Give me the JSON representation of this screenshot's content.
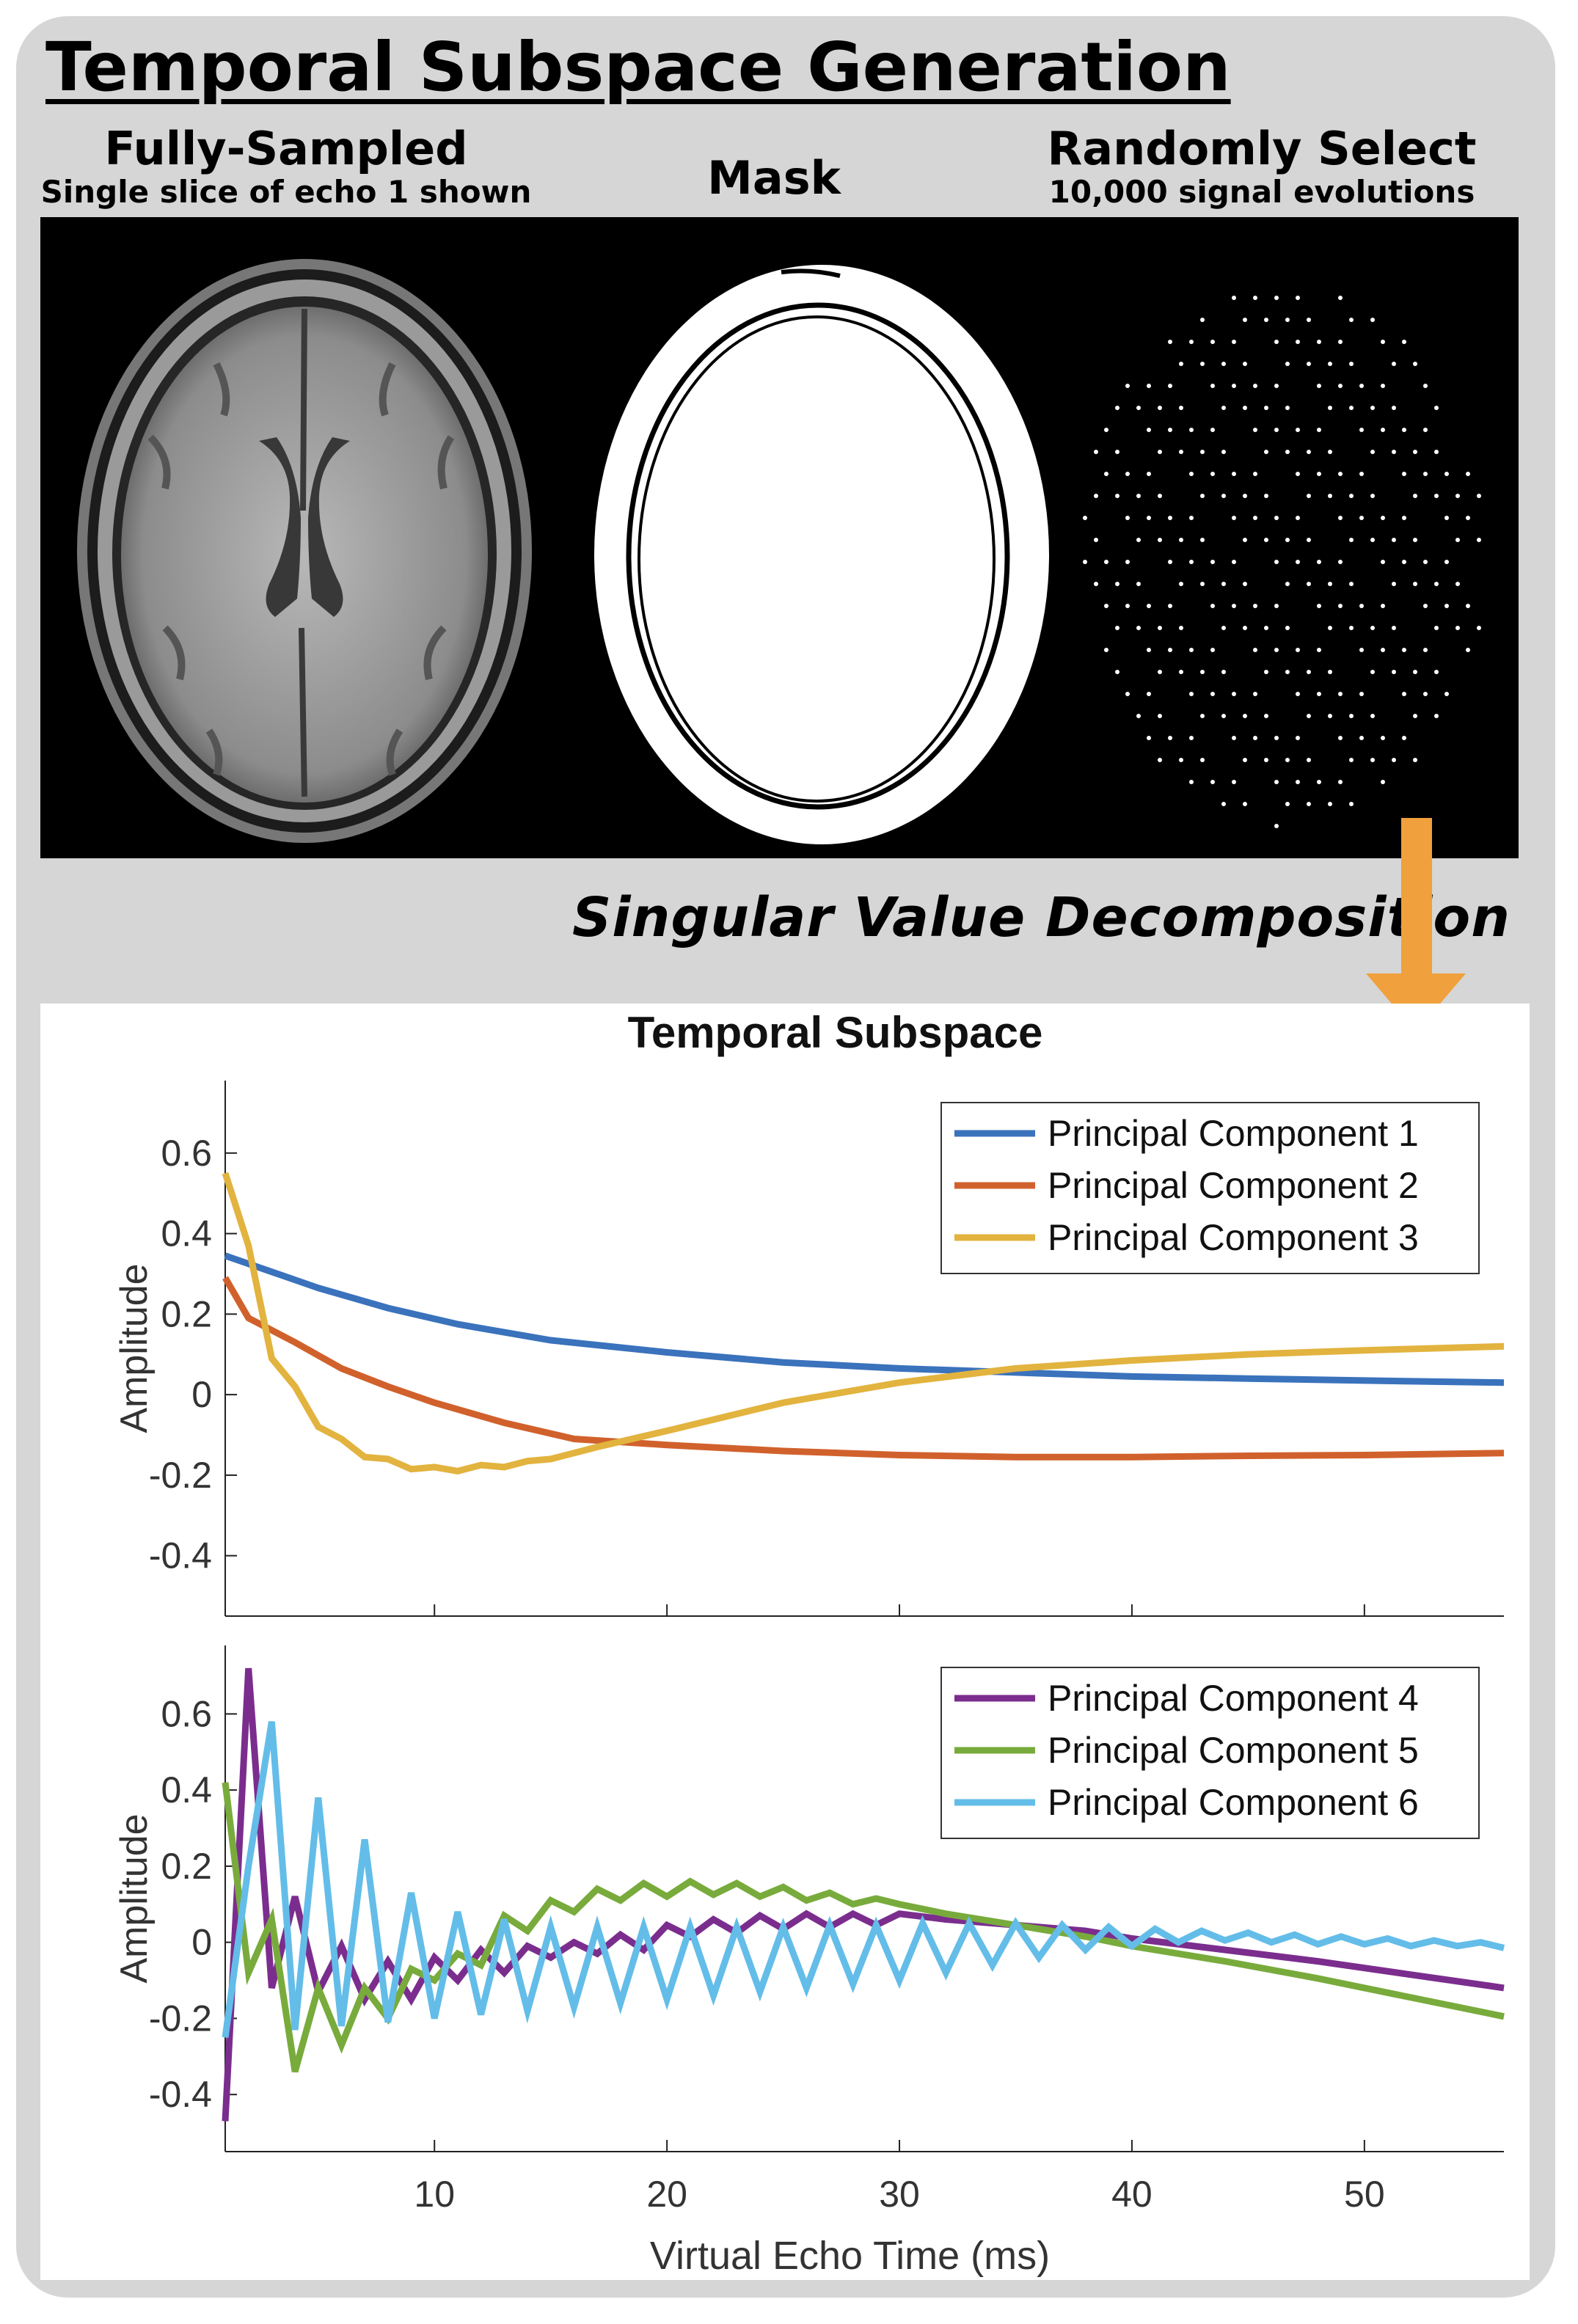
{
  "figure": {
    "title": "Temporal Subspace Generation",
    "columns": [
      {
        "heading": "Fully-Sampled",
        "subheading": "Single slice of echo 1 shown"
      },
      {
        "heading": "Mask",
        "subheading": ""
      },
      {
        "heading": "Randomly Select",
        "subheading": "10,000 signal evolutions"
      }
    ],
    "svd_label": "Singular Value Decomposition",
    "colors": {
      "panel_bg": "#d6d6d6",
      "arrow": "#f0a03c",
      "image_bg": "#000000"
    }
  },
  "chart_data": [
    {
      "type": "line",
      "title": "Temporal Subspace",
      "xlabel": "",
      "ylabel": "Amplitude",
      "xlim": [
        1,
        56
      ],
      "ylim": [
        -0.55,
        0.78
      ],
      "yticks": [
        0.6,
        0.4,
        0.2,
        0,
        -0.2,
        -0.4
      ],
      "ytick_labels": [
        "0.6",
        "0.4",
        "0.2",
        "0",
        "-0.2",
        "-0.4"
      ],
      "xticks": [
        10,
        20,
        30,
        40,
        50
      ],
      "legend_position": "top-right",
      "series": [
        {
          "name": "Principal Component 1",
          "color": "#3a72bc",
          "x": [
            1,
            3,
            5,
            8,
            11,
            15,
            20,
            25,
            30,
            35,
            40,
            45,
            50,
            56
          ],
          "y": [
            0.345,
            0.305,
            0.265,
            0.215,
            0.175,
            0.135,
            0.105,
            0.08,
            0.065,
            0.055,
            0.045,
            0.04,
            0.035,
            0.03
          ]
        },
        {
          "name": "Principal Component 2",
          "color": "#d1612c",
          "x": [
            1,
            2,
            4,
            6,
            8,
            10,
            13,
            16,
            20,
            25,
            30,
            35,
            40,
            45,
            50,
            56
          ],
          "y": [
            0.29,
            0.19,
            0.13,
            0.065,
            0.02,
            -0.02,
            -0.07,
            -0.11,
            -0.125,
            -0.14,
            -0.15,
            -0.155,
            -0.155,
            -0.152,
            -0.15,
            -0.145
          ]
        },
        {
          "name": "Principal Component 3",
          "color": "#e2b33e",
          "x": [
            1,
            2,
            3,
            4,
            5,
            6,
            7,
            8,
            9,
            10,
            11,
            12,
            13,
            14,
            15,
            17,
            20,
            25,
            30,
            35,
            40,
            45,
            50,
            56
          ],
          "y": [
            0.55,
            0.37,
            0.09,
            0.02,
            -0.08,
            -0.11,
            -0.155,
            -0.16,
            -0.185,
            -0.18,
            -0.19,
            -0.175,
            -0.18,
            -0.165,
            -0.16,
            -0.13,
            -0.09,
            -0.02,
            0.03,
            0.065,
            0.085,
            0.1,
            0.11,
            0.12
          ]
        }
      ]
    },
    {
      "type": "line",
      "title": "",
      "xlabel": "Virtual Echo Time (ms)",
      "ylabel": "Amplitude",
      "xlim": [
        1,
        56
      ],
      "ylim": [
        -0.55,
        0.78
      ],
      "yticks": [
        0.6,
        0.4,
        0.2,
        0,
        -0.2,
        -0.4
      ],
      "ytick_labels": [
        "0.6",
        "0.4",
        "0.2",
        "0",
        "-0.2",
        "-0.4"
      ],
      "xticks": [
        10,
        20,
        30,
        40,
        50
      ],
      "xtick_labels": [
        "10",
        "20",
        "30",
        "40",
        "50"
      ],
      "legend_position": "top-right",
      "series": [
        {
          "name": "Principal Component 4",
          "color": "#7b2d8e",
          "x": [
            1,
            2,
            3,
            4,
            5,
            6,
            7,
            8,
            9,
            10,
            11,
            12,
            13,
            14,
            15,
            16,
            17,
            18,
            19,
            20,
            21,
            22,
            23,
            24,
            25,
            26,
            27,
            28,
            29,
            30,
            32,
            34,
            36,
            38,
            40,
            44,
            48,
            52,
            56
          ],
          "y": [
            -0.47,
            0.72,
            -0.12,
            0.12,
            -0.13,
            -0.01,
            -0.15,
            -0.05,
            -0.15,
            -0.04,
            -0.1,
            -0.02,
            -0.08,
            -0.01,
            -0.04,
            0.0,
            -0.03,
            0.02,
            -0.02,
            0.045,
            0.015,
            0.06,
            0.025,
            0.07,
            0.035,
            0.075,
            0.04,
            0.075,
            0.045,
            0.075,
            0.06,
            0.05,
            0.04,
            0.03,
            0.01,
            -0.02,
            -0.05,
            -0.085,
            -0.12
          ]
        },
        {
          "name": "Principal Component 5",
          "color": "#78ab3c",
          "x": [
            1,
            2,
            3,
            4,
            5,
            6,
            7,
            8,
            9,
            10,
            11,
            12,
            13,
            14,
            15,
            16,
            17,
            18,
            19,
            20,
            21,
            22,
            23,
            24,
            25,
            26,
            27,
            28,
            29,
            30,
            32,
            34,
            36,
            38,
            40,
            44,
            48,
            52,
            56
          ],
          "y": [
            0.42,
            -0.08,
            0.06,
            -0.34,
            -0.12,
            -0.27,
            -0.12,
            -0.2,
            -0.07,
            -0.1,
            -0.03,
            -0.06,
            0.07,
            0.03,
            0.11,
            0.08,
            0.14,
            0.11,
            0.155,
            0.12,
            0.16,
            0.125,
            0.155,
            0.12,
            0.145,
            0.11,
            0.13,
            0.1,
            0.115,
            0.1,
            0.075,
            0.055,
            0.035,
            0.015,
            -0.01,
            -0.05,
            -0.095,
            -0.145,
            -0.195
          ]
        },
        {
          "name": "Principal Component 6",
          "color": "#63bde8",
          "x": [
            1,
            2,
            3,
            4,
            5,
            6,
            7,
            8,
            9,
            10,
            11,
            12,
            13,
            14,
            15,
            16,
            17,
            18,
            19,
            20,
            21,
            22,
            23,
            24,
            25,
            26,
            27,
            28,
            29,
            30,
            31,
            32,
            33,
            34,
            35,
            36,
            37,
            38,
            39,
            40,
            41,
            42,
            43,
            44,
            45,
            46,
            47,
            48,
            49,
            50,
            51,
            52,
            53,
            54,
            55,
            56
          ],
          "y": [
            -0.25,
            0.2,
            0.58,
            -0.23,
            0.38,
            -0.22,
            0.27,
            -0.21,
            0.13,
            -0.2,
            0.08,
            -0.19,
            0.06,
            -0.18,
            0.04,
            -0.17,
            0.04,
            -0.16,
            0.04,
            -0.15,
            0.04,
            -0.14,
            0.04,
            -0.13,
            0.04,
            -0.12,
            0.045,
            -0.11,
            0.045,
            -0.1,
            0.05,
            -0.08,
            0.05,
            -0.06,
            0.05,
            -0.04,
            0.045,
            -0.02,
            0.04,
            -0.01,
            0.035,
            0.0,
            0.03,
            0.005,
            0.025,
            0.0,
            0.02,
            -0.005,
            0.015,
            -0.005,
            0.01,
            -0.01,
            0.005,
            -0.01,
            0.0,
            -0.015
          ]
        }
      ]
    }
  ]
}
